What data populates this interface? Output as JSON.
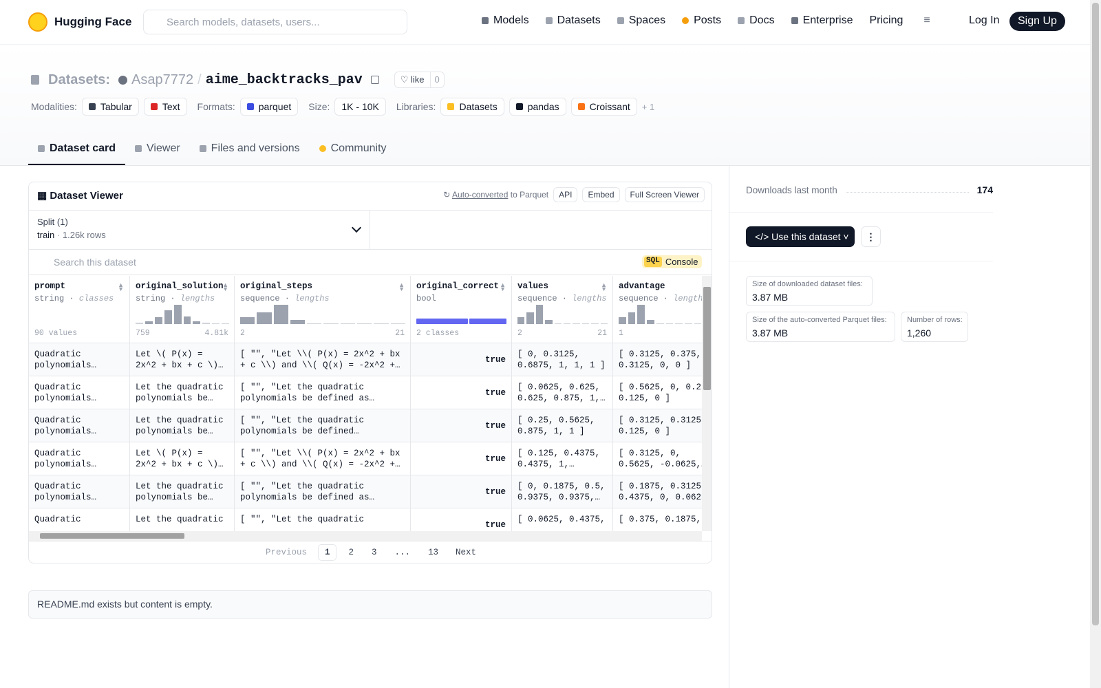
{
  "nav": {
    "brand": "Hugging Face",
    "search_placeholder": "Search models, datasets, users...",
    "links": [
      "Models",
      "Datasets",
      "Spaces",
      "Posts",
      "Docs",
      "Enterprise",
      "Pricing"
    ],
    "login": "Log In",
    "signup": "Sign Up"
  },
  "header": {
    "section": "Datasets:",
    "owner": "Asap7772",
    "separator": "/",
    "name": "aime_backtracks_pav",
    "like": "like",
    "like_count": 0,
    "tags": [
      {
        "label": "Modalities:",
        "items": [
          "Tabular",
          "Text"
        ]
      },
      {
        "label": "Formats:",
        "items": [
          "parquet"
        ]
      },
      {
        "label": "Size:",
        "items": [
          "1K - 10K"
        ]
      },
      {
        "label": "Libraries:",
        "items": [
          "Datasets",
          "pandas",
          "Croissant"
        ]
      }
    ],
    "more": "+ 1"
  },
  "tabs": [
    "Dataset card",
    "Viewer",
    "Files and versions",
    "Community"
  ],
  "viewer": {
    "title": "Dataset Viewer",
    "auto_converted": "Auto-converted",
    "to_parquet": "to Parquet",
    "buttons": [
      "API",
      "Embed",
      "Full Screen Viewer"
    ],
    "split_label": "Split (1)",
    "split": "train",
    "split_rows": "1.26k rows",
    "search_placeholder": "Search this dataset",
    "sql": "SQL",
    "console": "Console",
    "columns": [
      {
        "name": "prompt",
        "type": "string",
        "stat": "classes",
        "min": "90 values"
      },
      {
        "name": "original_solution",
        "type": "string",
        "stat": "lengths",
        "min": "759",
        "max": "4.81k",
        "histogram": [
          2,
          4,
          9,
          19,
          26,
          10,
          4,
          2,
          1,
          1
        ]
      },
      {
        "name": "original_steps",
        "type": "sequence",
        "stat": "lengths",
        "min": "2",
        "max": "21",
        "histogram": [
          9,
          15,
          24,
          5,
          1,
          1,
          1,
          0,
          1,
          1
        ]
      },
      {
        "name": "original_correct",
        "type": "bool",
        "min": "2 classes",
        "classes": [
          58,
          42
        ]
      },
      {
        "name": "values",
        "type": "sequence",
        "stat": "lengths",
        "min": "2",
        "max": "21",
        "histogram": [
          9,
          15,
          24,
          5,
          1,
          1,
          1,
          0,
          1,
          1
        ]
      },
      {
        "name": "advantage",
        "type": "sequence",
        "stat": "lengths",
        "min": "1",
        "max": "21",
        "histogram": [
          9,
          15,
          24,
          5,
          1,
          1,
          1,
          0,
          1,
          1
        ]
      }
    ],
    "rows": [
      [
        "Quadratic polynomials $P(x)…",
        "Let \\( P(x) = 2x^2 + bx + c \\) and \\(…",
        "[ \"\", \"Let \\\\( P(x) = 2x^2 + bx + c \\\\) and \\\\( Q(x) = -2x^2 + dx +…",
        "true",
        "[ 0, 0.3125, 0.6875, 1, 1, 1 ]",
        "[ 0.3125, 0.375, 0.3125, 0, 0 ]"
      ],
      [
        "Quadratic polynomials $P(x)…",
        "Let the quadratic polynomials be…",
        "[ \"\", \"Let the quadratic polynomials be defined as…",
        "true",
        "[ 0.0625, 0.625, 0.625, 0.875, 1, …",
        "[ 0.5625, 0, 0.25, 0.125, 0 ]"
      ],
      [
        "Quadratic polynomials $P(x)…",
        "Let the quadratic polynomials be…",
        "[ \"\", \"Let the quadratic polynomials be defined as:\\n\\n\\\\…",
        "true",
        "[ 0.25, 0.5625, 0.875, 1, 1 ]",
        "[ 0.3125, 0.3125, 0.125, 0 ]"
      ],
      [
        "Quadratic polynomials $P(x)…",
        "Let \\( P(x) = 2x^2 + bx + c \\) and \\(…",
        "[ \"\", \"Let \\\\( P(x) = 2x^2 + bx + c \\\\) and \\\\( Q(x) = -2x^2 + dx +…",
        "true",
        "[ 0.125, 0.4375, 0.4375, 1, 0.9375…",
        "[ 0.3125, 0, 0.5625, -0.0625,…"
      ],
      [
        "Quadratic polynomials $P(x)…",
        "Let the quadratic polynomials be…",
        "[ \"\", \"Let the quadratic polynomials be defined as…",
        "true",
        "[ 0, 0.1875, 0.5, 0.9375, 0.9375, 1…",
        "[ 0.1875, 0.3125, 0.4375, 0, 0.0625…"
      ],
      [
        "Quadratic",
        "Let the quadratic",
        "[ \"\", \"Let the quadratic",
        "true",
        "[ 0.0625, 0.4375,",
        "[ 0.375, 0.1875,"
      ]
    ],
    "pagination": {
      "prev": "Previous",
      "pages": [
        "1",
        "2",
        "3",
        "...",
        "13"
      ],
      "next": "Next"
    }
  },
  "readme": "README.md exists but content is empty.",
  "sidebar": {
    "downloads_label": "Downloads last month",
    "downloads": 174,
    "use_button": "Use this dataset",
    "cards": [
      {
        "label": "Size of downloaded dataset files:",
        "value": "3.87 MB"
      },
      {
        "label": "Size of the auto-converted Parquet files:",
        "value": "3.87 MB"
      },
      {
        "label": "Number of rows:",
        "value": "1,260"
      }
    ]
  }
}
